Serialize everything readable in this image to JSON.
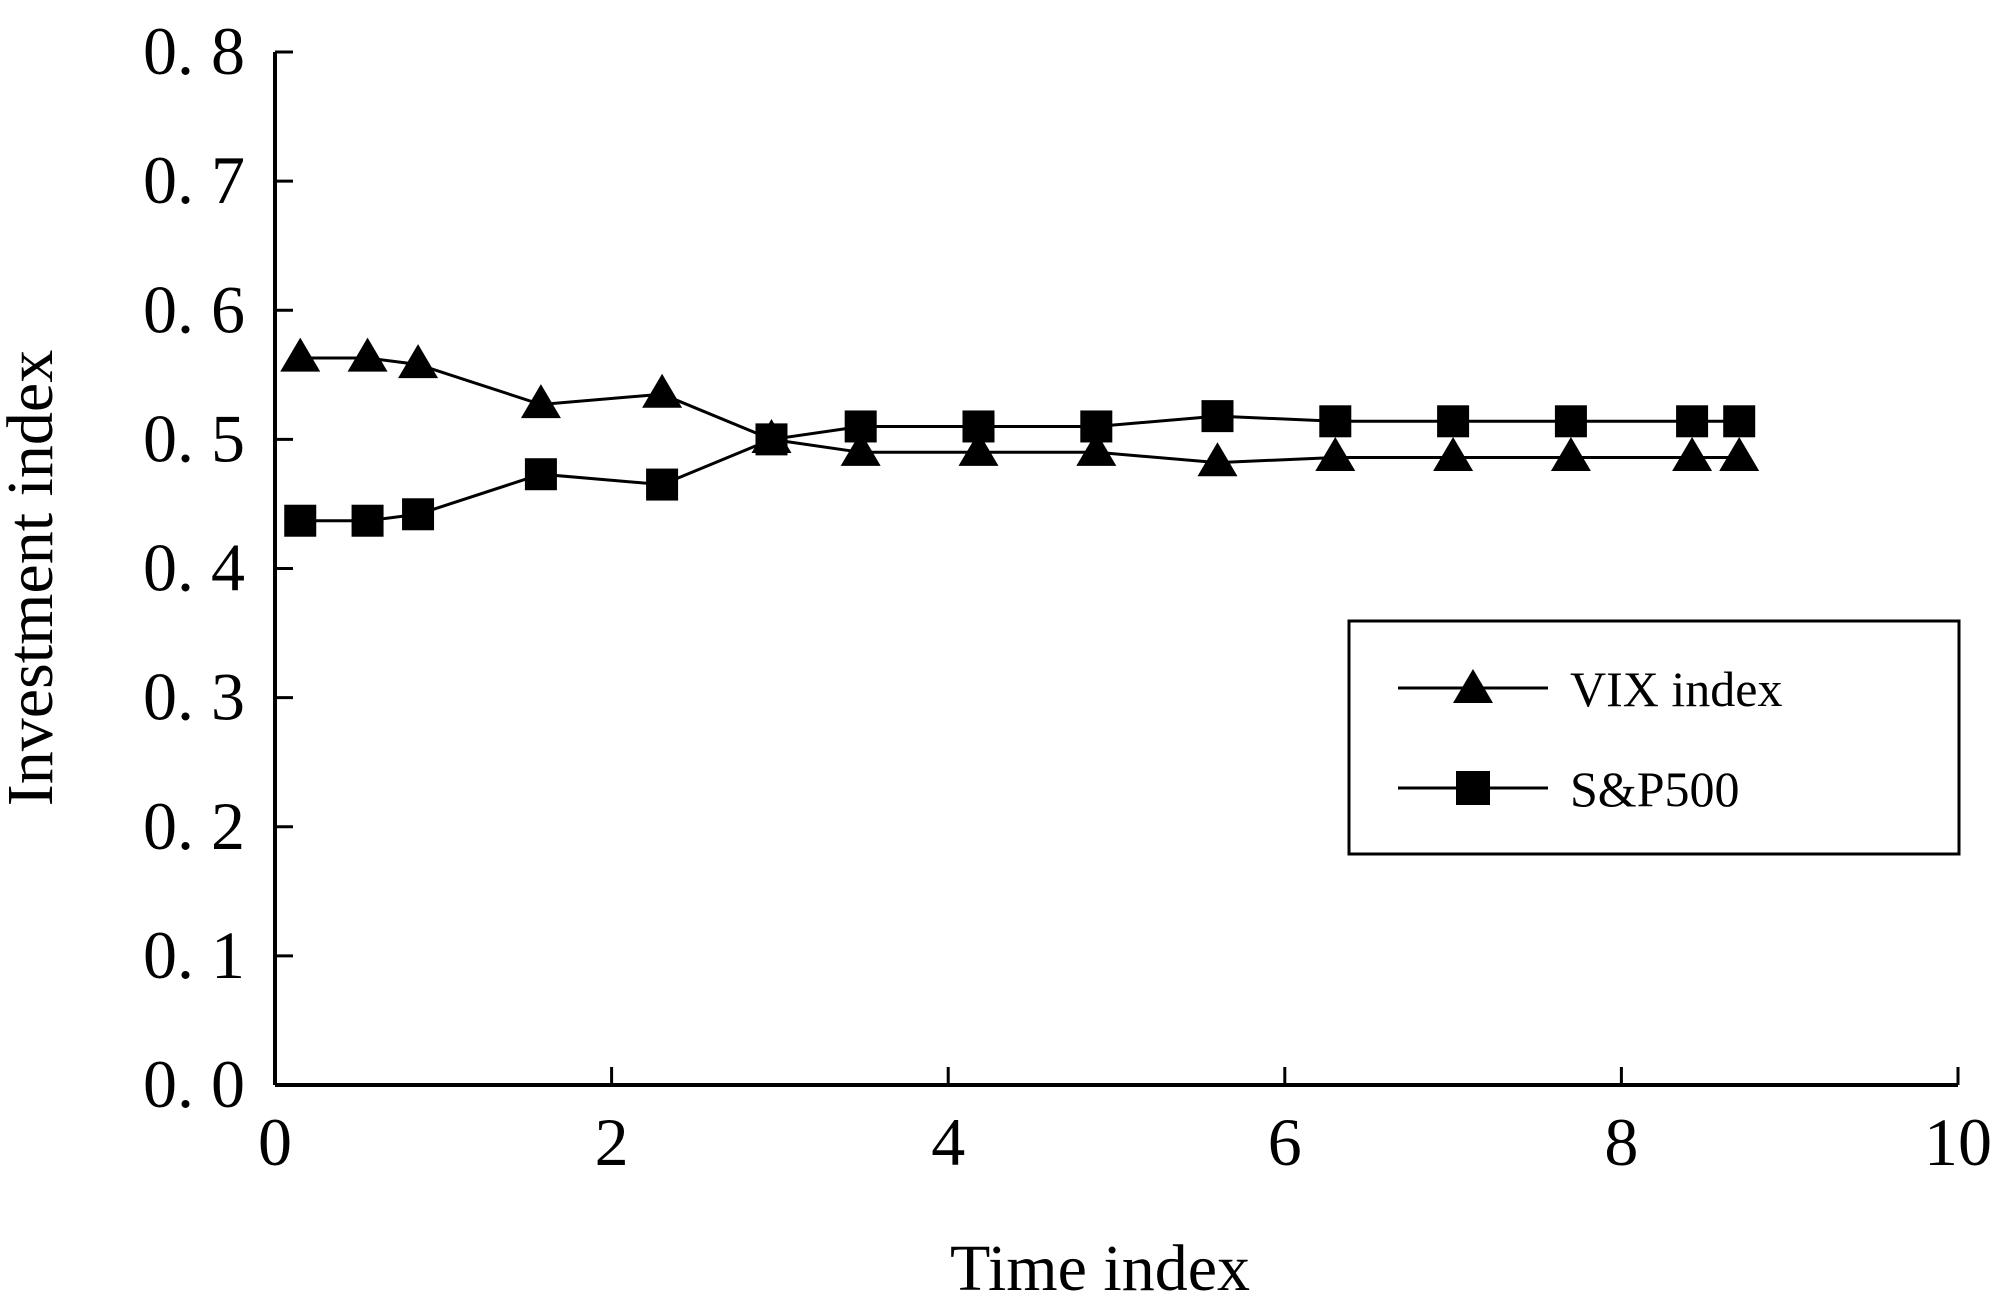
{
  "chart_data": {
    "type": "line",
    "title": "",
    "xlabel": "Time index",
    "ylabel": "Investment index",
    "xlim": [
      0,
      10
    ],
    "ylim": [
      0,
      0.8
    ],
    "xticks": [
      0,
      2,
      4,
      6,
      8,
      10
    ],
    "xtick_labels": [
      "0",
      "2",
      "4",
      "6",
      "8",
      "10"
    ],
    "yticks": [
      0,
      0.1,
      0.2,
      0.3,
      0.4,
      0.5,
      0.6,
      0.7,
      0.8
    ],
    "ytick_labels": [
      "0. 0",
      "0. 1",
      "0. 2",
      "0. 3",
      "0. 4",
      "0. 5",
      "0. 6",
      "0. 7",
      "0. 8"
    ],
    "grid": false,
    "legend_position": "right",
    "series": [
      {
        "name": "VIX index",
        "marker": "triangle",
        "x": [
          0.15,
          0.55,
          0.85,
          1.58,
          2.3,
          2.95,
          3.48,
          4.18,
          4.88,
          5.6,
          6.3,
          7.0,
          7.7,
          8.42,
          8.7
        ],
        "y": [
          0.563,
          0.563,
          0.558,
          0.527,
          0.535,
          0.5,
          0.49,
          0.49,
          0.49,
          0.482,
          0.486,
          0.486,
          0.486,
          0.486,
          0.486
        ]
      },
      {
        "name": "S&P500",
        "marker": "square",
        "x": [
          0.15,
          0.55,
          0.85,
          1.58,
          2.3,
          2.95,
          3.48,
          4.18,
          4.88,
          5.6,
          6.3,
          7.0,
          7.7,
          8.42,
          8.7
        ],
        "y": [
          0.437,
          0.437,
          0.442,
          0.473,
          0.465,
          0.5,
          0.51,
          0.51,
          0.51,
          0.518,
          0.514,
          0.514,
          0.514,
          0.514,
          0.514
        ]
      }
    ]
  }
}
